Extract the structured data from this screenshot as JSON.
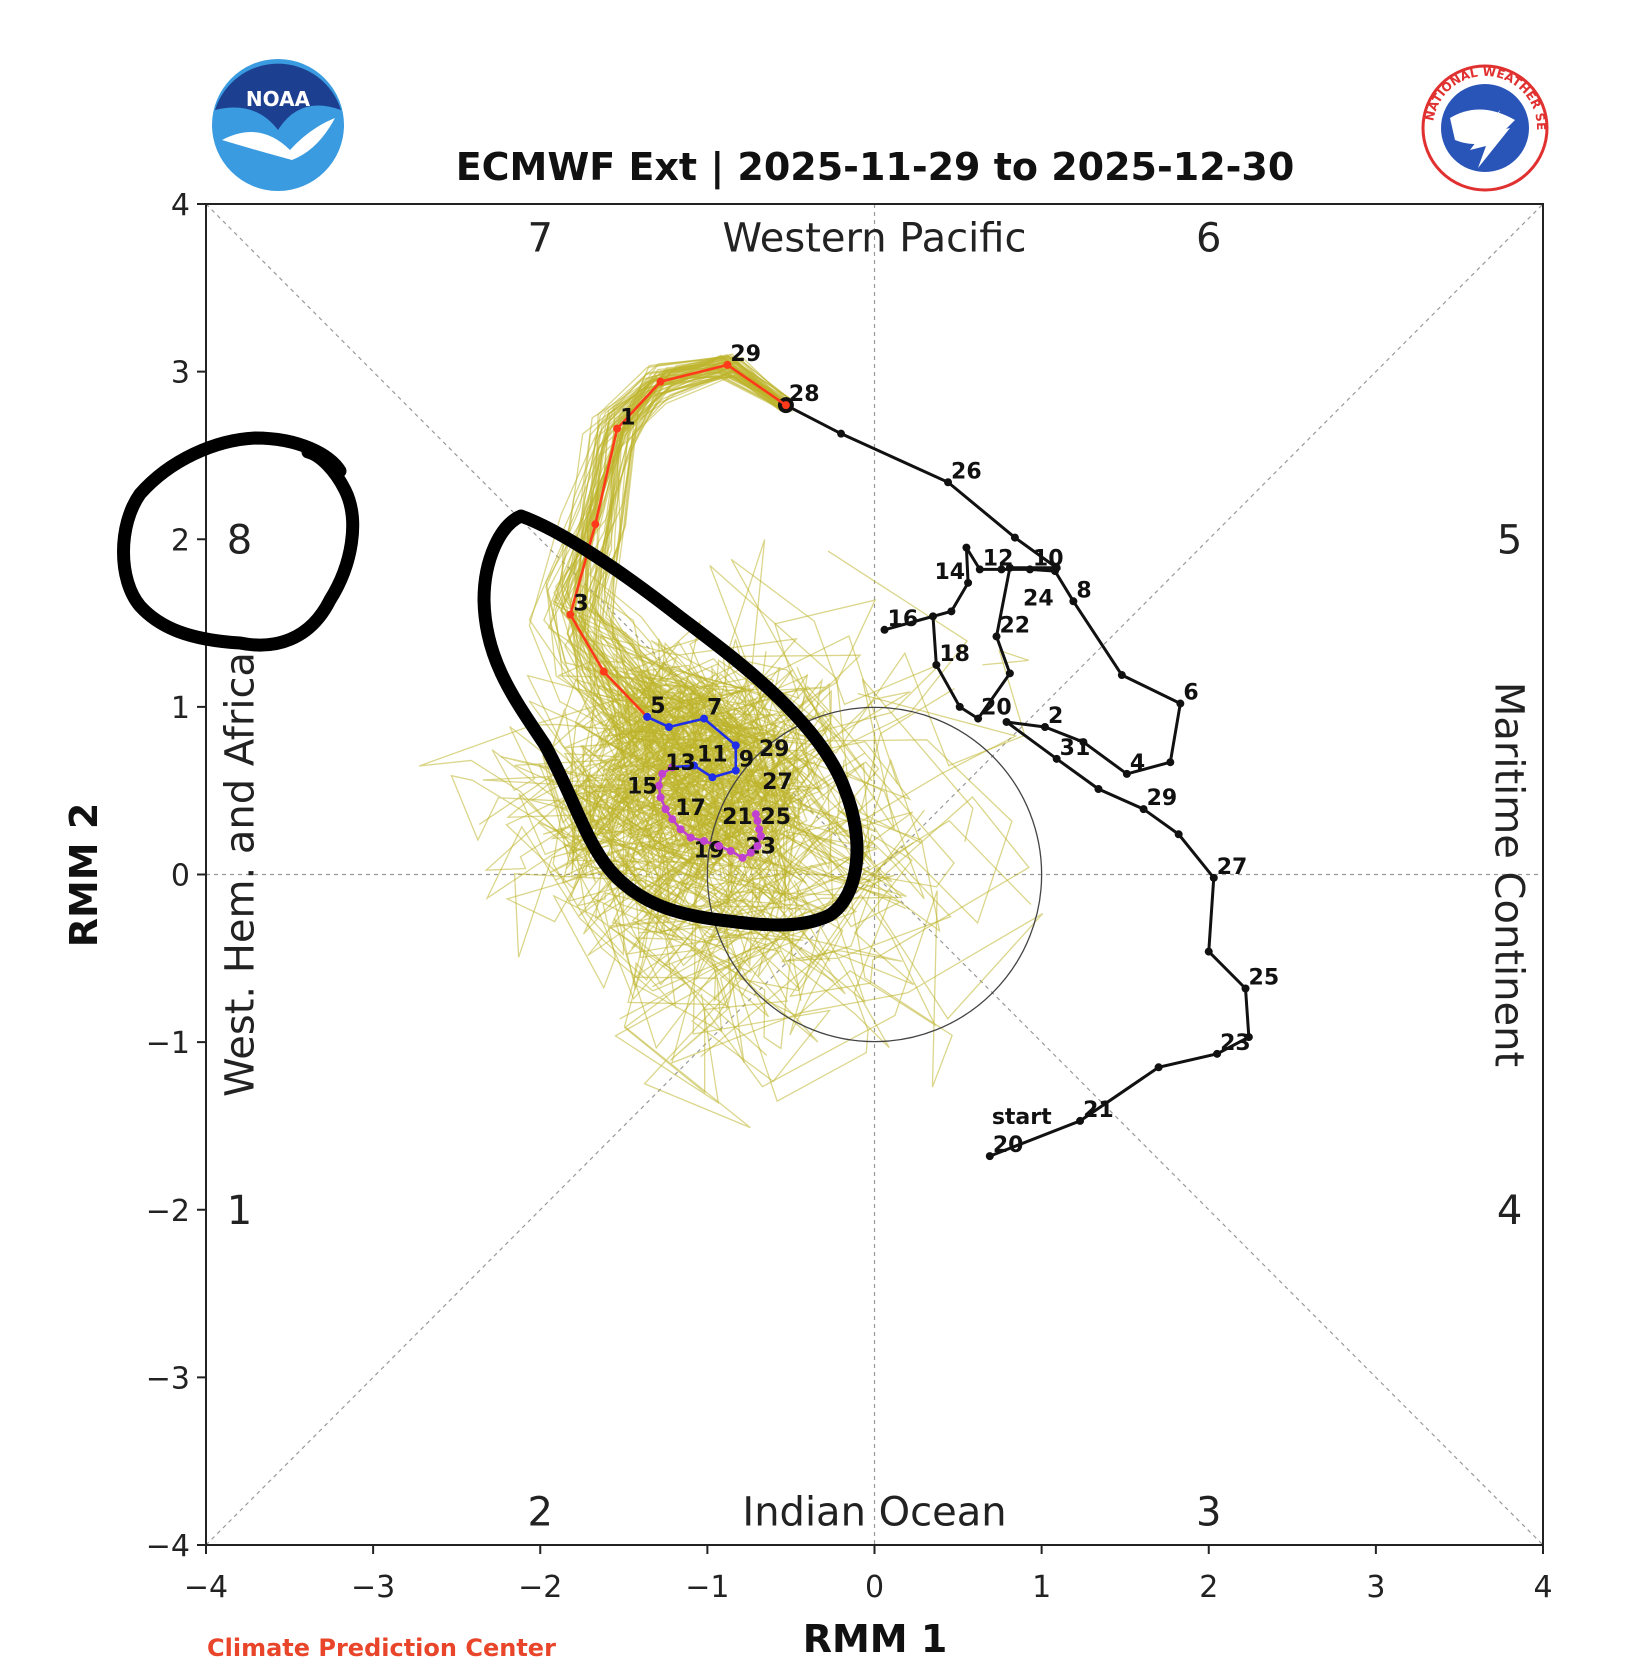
{
  "logos": {
    "left": "NOAA",
    "right": "NATIONAL WEATHER SERVICE"
  },
  "footer": {
    "credit": "Climate Prediction Center"
  },
  "chart_data": {
    "type": "line",
    "title": "ECMWF Ext | 2025-11-29 to 2025-12-30",
    "xlabel": "RMM 1",
    "ylabel": "RMM 2",
    "xlim": [
      -4,
      4
    ],
    "ylim": [
      -4,
      4
    ],
    "x_ticks": [
      "−4",
      "−3",
      "−2",
      "−1",
      "0",
      "1",
      "2",
      "3",
      "4"
    ],
    "y_ticks": [
      "−4",
      "−3",
      "−2",
      "−1",
      "0",
      "1",
      "2",
      "3",
      "4"
    ],
    "phase_numbers": [
      "1",
      "2",
      "3",
      "4",
      "5",
      "6",
      "7",
      "8"
    ],
    "regions": {
      "top": "Western Pacific",
      "bottom": "Indian Ocean",
      "left": "West. Hem. and Africa",
      "right": "Maritime Continent"
    },
    "unit_circle_radius": 1,
    "start_label": "start",
    "colors": {
      "observed": "#111111",
      "week1": "#ff3a1a",
      "week2": "#1f2ee8",
      "weeks3_4": "#c040d0",
      "ensemble": "#bdb52c"
    },
    "series": [
      {
        "role": "observed",
        "color": "#111111",
        "points": [
          {
            "d": "20",
            "x": 0.69,
            "y": -1.68,
            "l": true
          },
          {
            "d": "21",
            "x": 1.23,
            "y": -1.47,
            "l": true
          },
          {
            "d": "22",
            "x": 1.7,
            "y": -1.15,
            "l": false
          },
          {
            "d": "23",
            "x": 2.05,
            "y": -1.07,
            "l": true
          },
          {
            "d": "24",
            "x": 2.24,
            "y": -0.97,
            "l": false
          },
          {
            "d": "25",
            "x": 2.22,
            "y": -0.68,
            "l": true
          },
          {
            "d": "26",
            "x": 2.0,
            "y": -0.46,
            "l": false
          },
          {
            "d": "27",
            "x": 2.03,
            "y": -0.02,
            "l": true
          },
          {
            "d": "28",
            "x": 1.82,
            "y": 0.24,
            "l": false
          },
          {
            "d": "29",
            "x": 1.61,
            "y": 0.39,
            "l": true
          },
          {
            "d": "30",
            "x": 1.34,
            "y": 0.51,
            "l": false
          },
          {
            "d": "31",
            "x": 1.09,
            "y": 0.69,
            "l": true
          },
          {
            "d": "1",
            "x": 0.79,
            "y": 0.91,
            "l": false
          },
          {
            "d": "2",
            "x": 1.02,
            "y": 0.88,
            "l": true
          },
          {
            "d": "3",
            "x": 1.25,
            "y": 0.79,
            "l": false
          },
          {
            "d": "4",
            "x": 1.51,
            "y": 0.6,
            "l": true
          },
          {
            "d": "5",
            "x": 1.77,
            "y": 0.67,
            "l": false
          },
          {
            "d": "6",
            "x": 1.83,
            "y": 1.02,
            "l": true
          },
          {
            "d": "7",
            "x": 1.48,
            "y": 1.19,
            "l": false
          },
          {
            "d": "8",
            "x": 1.19,
            "y": 1.63,
            "l": true
          },
          {
            "d": "9",
            "x": 1.08,
            "y": 1.81,
            "l": false
          },
          {
            "d": "10",
            "x": 0.93,
            "y": 1.82,
            "l": true
          },
          {
            "d": "11",
            "x": 0.76,
            "y": 1.82,
            "l": false
          },
          {
            "d": "12",
            "x": 0.63,
            "y": 1.82,
            "l": true
          },
          {
            "d": "13",
            "x": 0.55,
            "y": 1.95,
            "l": false
          },
          {
            "d": "14",
            "x": 0.56,
            "y": 1.74,
            "l": true
          },
          {
            "d": "15",
            "x": 0.46,
            "y": 1.57,
            "l": false
          },
          {
            "d": "16",
            "x": 0.06,
            "y": 1.46,
            "l": true
          },
          {
            "d": "17",
            "x": 0.35,
            "y": 1.54,
            "l": false
          },
          {
            "d": "18",
            "x": 0.37,
            "y": 1.25,
            "l": true
          },
          {
            "d": "19",
            "x": 0.51,
            "y": 1.0,
            "l": false
          },
          {
            "d": "20",
            "x": 0.62,
            "y": 0.93,
            "l": true
          },
          {
            "d": "21",
            "x": 0.81,
            "y": 1.2,
            "l": false
          },
          {
            "d": "22",
            "x": 0.73,
            "y": 1.42,
            "l": true
          },
          {
            "d": "23",
            "x": 0.81,
            "y": 1.83,
            "l": false
          },
          {
            "d": "24",
            "x": 1.09,
            "y": 1.83,
            "l": true
          },
          {
            "d": "25",
            "x": 0.84,
            "y": 2.01,
            "l": false
          },
          {
            "d": "26",
            "x": 0.44,
            "y": 2.34,
            "l": true
          },
          {
            "d": "27",
            "x": -0.2,
            "y": 2.63,
            "l": false
          },
          {
            "d": "28",
            "x": -0.53,
            "y": 2.8,
            "l": true
          }
        ]
      },
      {
        "role": "week1",
        "color": "#ff3a1a",
        "points": [
          {
            "d": "28",
            "x": -0.53,
            "y": 2.8,
            "l": false
          },
          {
            "d": "29",
            "x": -0.88,
            "y": 3.04,
            "l": true
          },
          {
            "d": "30",
            "x": -1.28,
            "y": 2.94,
            "l": false
          },
          {
            "d": "1",
            "x": -1.54,
            "y": 2.66,
            "l": true
          },
          {
            "d": "2",
            "x": -1.67,
            "y": 2.09,
            "l": false
          },
          {
            "d": "3",
            "x": -1.82,
            "y": 1.55,
            "l": true
          },
          {
            "d": "4",
            "x": -1.62,
            "y": 1.21,
            "l": false
          },
          {
            "d": "5",
            "x": -1.36,
            "y": 0.94,
            "l": true
          }
        ]
      },
      {
        "role": "week2",
        "color": "#1f2ee8",
        "points": [
          {
            "d": "5",
            "x": -1.36,
            "y": 0.94,
            "l": false
          },
          {
            "d": "6",
            "x": -1.23,
            "y": 0.88,
            "l": false
          },
          {
            "d": "7",
            "x": -1.02,
            "y": 0.93,
            "l": true
          },
          {
            "d": "8",
            "x": -0.83,
            "y": 0.77,
            "l": false
          },
          {
            "d": "9",
            "x": -0.83,
            "y": 0.62,
            "l": true
          },
          {
            "d": "10",
            "x": -0.97,
            "y": 0.58,
            "l": false
          },
          {
            "d": "11",
            "x": -1.08,
            "y": 0.65,
            "l": true
          },
          {
            "d": "12",
            "x": -1.21,
            "y": 0.64,
            "l": false
          }
        ]
      },
      {
        "role": "weeks3_4",
        "color": "#c040d0",
        "points": [
          {
            "d": "12",
            "x": -1.21,
            "y": 0.64,
            "l": false
          },
          {
            "d": "13",
            "x": -1.27,
            "y": 0.6,
            "l": true
          },
          {
            "d": "14",
            "x": -1.29,
            "y": 0.53,
            "l": false
          },
          {
            "d": "15",
            "x": -1.28,
            "y": 0.46,
            "l": true
          },
          {
            "d": "16",
            "x": -1.25,
            "y": 0.39,
            "l": false
          },
          {
            "d": "17",
            "x": -1.21,
            "y": 0.33,
            "l": true
          },
          {
            "d": "18",
            "x": -1.16,
            "y": 0.27,
            "l": false
          },
          {
            "d": "19",
            "x": -1.1,
            "y": 0.22,
            "l": true
          },
          {
            "d": "20",
            "x": -1.02,
            "y": 0.2,
            "l": false
          },
          {
            "d": "21",
            "x": -0.93,
            "y": 0.17,
            "l": true
          },
          {
            "d": "22",
            "x": -0.86,
            "y": 0.14,
            "l": false
          },
          {
            "d": "23",
            "x": -0.79,
            "y": 0.1,
            "l": true
          },
          {
            "d": "24",
            "x": -0.74,
            "y": 0.13,
            "l": false
          },
          {
            "d": "25",
            "x": -0.7,
            "y": 0.17,
            "l": true
          },
          {
            "d": "26",
            "x": -0.68,
            "y": 0.23,
            "l": false
          },
          {
            "d": "27",
            "x": -0.69,
            "y": 0.27,
            "l": true
          },
          {
            "d": "28",
            "x": -0.7,
            "y": 0.32,
            "l": false
          },
          {
            "d": "29",
            "x": -0.71,
            "y": 0.36,
            "l": true
          }
        ]
      }
    ]
  }
}
